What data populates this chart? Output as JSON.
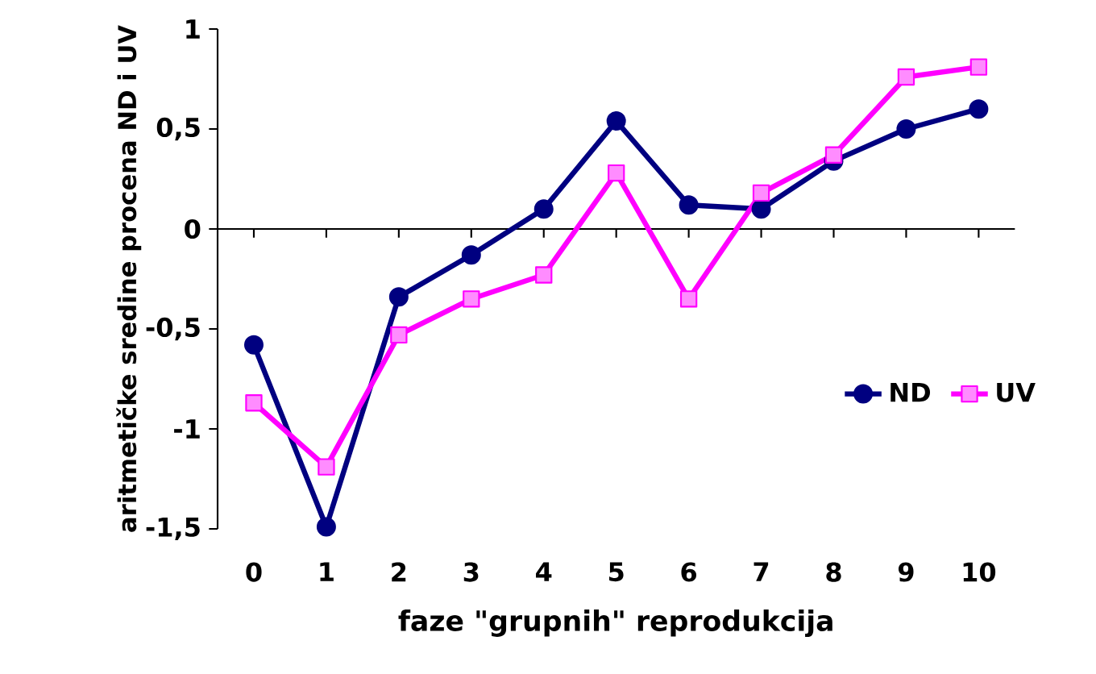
{
  "chart_data": {
    "type": "line",
    "xlabel": "faze \"grupnih\" reprodukcija",
    "ylabel": "aritmetičke sredine procena ND i UV",
    "x": [
      0,
      1,
      2,
      3,
      4,
      5,
      6,
      7,
      8,
      9,
      10
    ],
    "series": [
      {
        "name": "ND",
        "color": "#000080",
        "marker": "circle",
        "values": [
          -0.58,
          -1.49,
          -0.34,
          -0.13,
          0.1,
          0.54,
          0.12,
          0.1,
          0.34,
          0.5,
          0.6
        ]
      },
      {
        "name": "UV",
        "color": "#ff00ff",
        "marker": "square",
        "values": [
          -0.87,
          -1.19,
          -0.53,
          -0.35,
          -0.23,
          0.28,
          -0.35,
          0.18,
          0.37,
          0.76,
          0.81
        ]
      }
    ],
    "xlim": [
      -0.5,
      10.5
    ],
    "xticks": [
      0,
      1,
      2,
      3,
      4,
      5,
      6,
      7,
      8,
      9,
      10
    ],
    "ylim": [
      -1.5,
      1
    ],
    "yticks": [
      {
        "value": -1.5,
        "label": "-1,5"
      },
      -1,
      {
        "value": -0.5,
        "label": "-0,5"
      },
      0,
      {
        "value": 0.5,
        "label": "0,5"
      },
      1
    ],
    "legend": "right",
    "line_style": "solid"
  }
}
